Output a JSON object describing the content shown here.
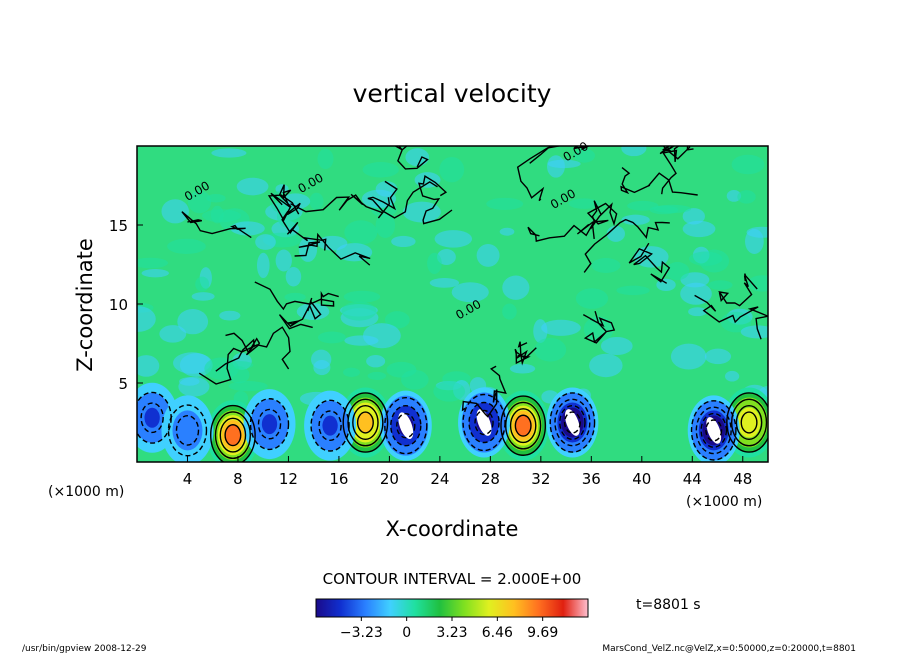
{
  "chart_data": {
    "type": "heatmap",
    "title": "vertical velocity",
    "xlabel": "X-coordinate",
    "ylabel": "Z-coordinate",
    "x_unit_left": "(×1000 m)",
    "x_unit_right": "(×1000 m)",
    "xlim": [
      0,
      50
    ],
    "ylim": [
      0,
      20
    ],
    "x_ticks": [
      4,
      8,
      12,
      16,
      20,
      24,
      28,
      32,
      36,
      40,
      44,
      48
    ],
    "y_ticks": [
      5,
      10,
      15
    ],
    "contour_interval_label": "CONTOUR INTERVAL = 2.000E+00",
    "contour_labels": [
      "0.00",
      "0.00",
      "0.00",
      "0.00",
      "0.00"
    ],
    "colorbar": {
      "ticks": [
        "−3.23",
        "0",
        "3.23",
        "6.46",
        "9.69"
      ],
      "tick_values": [
        -3.23,
        0,
        3.23,
        6.46,
        9.69
      ],
      "range": [
        -6.46,
        12.92
      ],
      "colors": [
        "#1a0a8a",
        "#1030d0",
        "#2a80ff",
        "#40d0ff",
        "#20e0a0",
        "#20c040",
        "#80e020",
        "#e0f020",
        "#ffc020",
        "#ff7020",
        "#e02010",
        "#ffc0d0"
      ]
    },
    "updrafts": [
      {
        "x": 7.6,
        "z": 1.7,
        "w": 9.5
      },
      {
        "x": 18.1,
        "z": 2.5,
        "w": 8.5
      },
      {
        "x": 30.6,
        "z": 2.3,
        "w": 9.7
      },
      {
        "x": 48.5,
        "z": 2.5,
        "w": 7.5
      }
    ],
    "downdrafts": [
      {
        "x": 1.2,
        "z": 2.8,
        "w": -4.0
      },
      {
        "x": 4.0,
        "z": 2.0,
        "w": -3.5
      },
      {
        "x": 10.5,
        "z": 2.4,
        "w": -4.0
      },
      {
        "x": 15.3,
        "z": 2.3,
        "w": -4.5
      },
      {
        "x": 21.3,
        "z": 2.3,
        "w": -6.5
      },
      {
        "x": 27.5,
        "z": 2.5,
        "w": -6.5
      },
      {
        "x": 34.5,
        "z": 2.5,
        "w": -7.0
      },
      {
        "x": 45.7,
        "z": 2.0,
        "w": -7.0
      }
    ],
    "time_label": "t=8801 s"
  },
  "footer": {
    "left": "/usr/bin/gpview   2008-12-29",
    "right": "MarsCond_VelZ.nc@VelZ,x=0:50000,z=0:20000,t=8801"
  }
}
